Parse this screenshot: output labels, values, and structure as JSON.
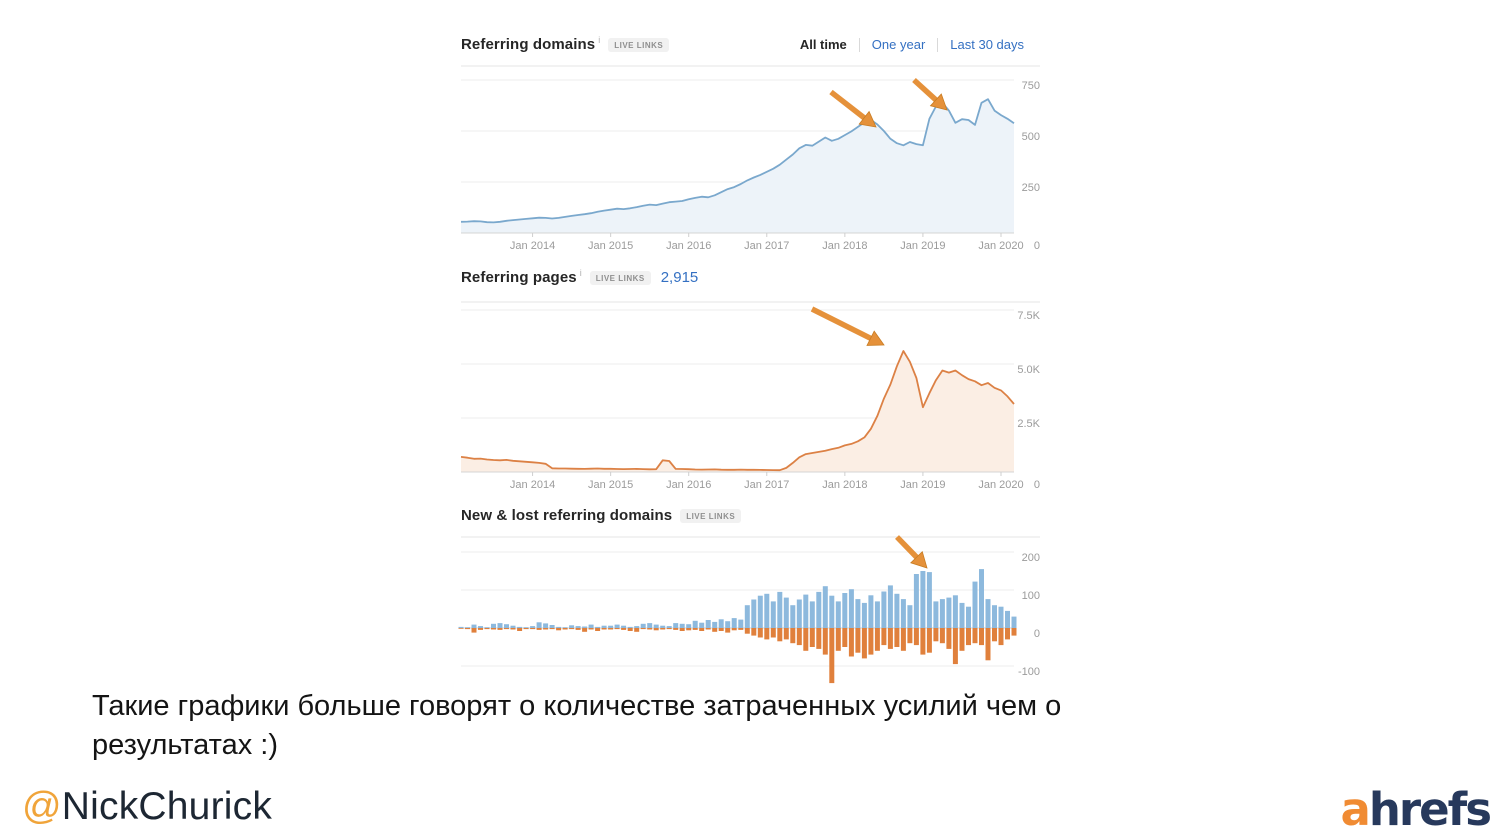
{
  "slide": {
    "caption_line1": "Такие графики больше говорят о количестве затраченных усилий чем о",
    "caption_line2": "результатах :)",
    "handle_at": "@",
    "handle_name": "NickChurick",
    "logo_a": "a",
    "logo_rest": "hrefs"
  },
  "colors": {
    "blue_line": "#7aa8cd",
    "blue_fill": "#edf3f9",
    "orange_line": "#dc8145",
    "orange_fill": "#fbeee4",
    "bar_new_blue": "#8db9dd",
    "bar_lost_orange": "#e0803c",
    "link_blue": "#3470c2",
    "arrow_orange": "#e5913a",
    "label_gray": "#9b9b9b"
  },
  "time_filters": [
    {
      "label": "All time",
      "active": true
    },
    {
      "label": "One year",
      "active": false
    },
    {
      "label": "Last 30 days",
      "active": false
    }
  ],
  "charts": [
    {
      "title": "Referring domains",
      "info": "i",
      "badge": "LIVE LINKS"
    },
    {
      "title": "Referring pages",
      "info": "i",
      "badge": "LIVE LINKS",
      "value": "2,915"
    },
    {
      "title": "New & lost referring domains",
      "badge": "LIVE LINKS"
    }
  ],
  "chart_data": [
    {
      "type": "area",
      "title": "Referring domains",
      "x_tick_labels": [
        "Jan 2014",
        "Jan 2015",
        "Jan 2016",
        "Jan 2017",
        "Jan 2018",
        "Jan 2019",
        "Jan 2020"
      ],
      "x_tick_indices": [
        11,
        23,
        35,
        47,
        59,
        71,
        83
      ],
      "n_points": 86,
      "ytick_values": [
        750,
        500,
        250
      ],
      "ytick_labels": [
        "750",
        "500",
        "250"
      ],
      "zero_label": "0",
      "ylim": [
        0,
        818
      ],
      "grid": true,
      "series": [
        {
          "name": "Referring domains",
          "color": "#7aa8cd",
          "fill": "#edf3f9",
          "values": [
            55,
            56,
            58,
            57,
            53,
            52,
            55,
            60,
            63,
            66,
            69,
            72,
            75,
            74,
            71,
            74,
            79,
            84,
            88,
            92,
            97,
            104,
            110,
            114,
            119,
            117,
            121,
            127,
            134,
            139,
            137,
            144,
            151,
            154,
            157,
            165,
            172,
            178,
            175,
            185,
            200,
            215,
            225,
            240,
            258,
            272,
            285,
            300,
            315,
            335,
            360,
            385,
            415,
            432,
            428,
            448,
            468,
            452,
            462,
            480,
            498,
            520,
            542,
            555,
            532,
            500,
            462,
            440,
            430,
            446,
            436,
            430,
            560,
            620,
            638,
            600,
            540,
            558,
            554,
            530,
            638,
            656,
            600,
            578,
            560,
            538
          ]
        }
      ]
    },
    {
      "type": "area",
      "title": "Referring pages",
      "x_tick_labels": [
        "Jan 2014",
        "Jan 2015",
        "Jan 2016",
        "Jan 2017",
        "Jan 2018",
        "Jan 2019",
        "Jan 2020"
      ],
      "x_tick_indices": [
        11,
        23,
        35,
        47,
        59,
        71,
        83
      ],
      "n_points": 86,
      "ytick_values": [
        7500,
        5000,
        2500
      ],
      "ytick_labels": [
        "7.5K",
        "5.0K",
        "2.5K"
      ],
      "zero_label": "0",
      "ylim": [
        0,
        7870
      ],
      "grid": true,
      "series": [
        {
          "name": "Referring pages",
          "color": "#dc8145",
          "fill": "#fbeee4",
          "values": [
            700,
            660,
            610,
            620,
            580,
            555,
            540,
            560,
            520,
            495,
            470,
            450,
            420,
            380,
            170,
            160,
            160,
            155,
            150,
            145,
            155,
            160,
            150,
            150,
            140,
            132,
            138,
            145,
            132,
            126,
            130,
            540,
            510,
            145,
            140,
            128,
            118,
            110,
            114,
            120,
            108,
            104,
            100,
            110,
            104,
            100,
            95,
            92,
            88,
            85,
            190,
            420,
            680,
            830,
            880,
            930,
            980,
            1060,
            1120,
            1230,
            1300,
            1420,
            1600,
            2000,
            2600,
            3400,
            4050,
            4900,
            5600,
            5100,
            4350,
            3000,
            3650,
            4250,
            4700,
            4600,
            4700,
            4480,
            4300,
            4200,
            4020,
            4120,
            3900,
            3780,
            3500,
            3150
          ]
        }
      ]
    },
    {
      "type": "bar",
      "title": "New & lost referring domains",
      "x_tick_labels": [],
      "x_tick_indices": [],
      "n_points": 86,
      "ytick_values": [
        200,
        100,
        0,
        -100
      ],
      "ytick_labels": [
        "200",
        "100",
        "0",
        "-100"
      ],
      "ylim": [
        -150,
        240
      ],
      "grid": true,
      "series": [
        {
          "name": "New referring domains",
          "color": "#8db9dd",
          "values": [
            3,
            2,
            9,
            5,
            2,
            11,
            13,
            10,
            6,
            3,
            2,
            5,
            15,
            12,
            8,
            3,
            2,
            7,
            5,
            4,
            9,
            3,
            6,
            6,
            9,
            6,
            3,
            5,
            11,
            13,
            9,
            6,
            5,
            13,
            11,
            10,
            19,
            14,
            21,
            16,
            23,
            18,
            26,
            22,
            60,
            75,
            85,
            90,
            70,
            95,
            80,
            60,
            75,
            88,
            70,
            95,
            110,
            85,
            70,
            92,
            102,
            76,
            66,
            86,
            70,
            96,
            112,
            90,
            76,
            60,
            142,
            150,
            147,
            70,
            76,
            80,
            86,
            66,
            56,
            122,
            155,
            76,
            60,
            56,
            45,
            30
          ]
        },
        {
          "name": "Lost referring domains",
          "color": "#e0803c",
          "values": [
            -2,
            -3,
            -12,
            -5,
            -3,
            -4,
            -5,
            -3,
            -4,
            -8,
            -3,
            -3,
            -5,
            -4,
            -3,
            -6,
            -4,
            -3,
            -5,
            -10,
            -4,
            -8,
            -4,
            -4,
            -3,
            -5,
            -8,
            -10,
            -3,
            -4,
            -6,
            -4,
            -3,
            -5,
            -8,
            -6,
            -5,
            -8,
            -4,
            -10,
            -8,
            -12,
            -6,
            -5,
            -15,
            -20,
            -25,
            -30,
            -25,
            -35,
            -30,
            -40,
            -45,
            -60,
            -50,
            -55,
            -70,
            -145,
            -60,
            -50,
            -75,
            -65,
            -80,
            -70,
            -60,
            -45,
            -55,
            -50,
            -60,
            -40,
            -45,
            -70,
            -65,
            -35,
            -40,
            -55,
            -95,
            -60,
            -45,
            -40,
            -45,
            -85,
            -35,
            -45,
            -30,
            -20
          ]
        }
      ]
    }
  ]
}
